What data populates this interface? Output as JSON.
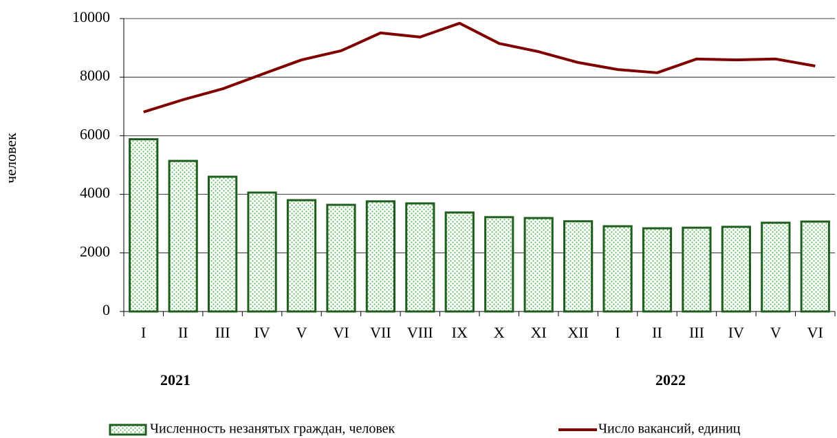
{
  "chart_data": {
    "type": "bar_line",
    "y_axis_label": "человек",
    "categories": [
      "I",
      "II",
      "III",
      "IV",
      "V",
      "VI",
      "VII",
      "VIII",
      "IX",
      "X",
      "XI",
      "XII",
      "I",
      "II",
      "III",
      "IV",
      "V",
      "VI"
    ],
    "year_labels": [
      "2021",
      "2022"
    ],
    "series": [
      {
        "name": "Численность незанятых граждан, человек",
        "type": "bar",
        "color": "#1d5e1d",
        "values": [
          5880,
          5140,
          4600,
          4060,
          3800,
          3640,
          3760,
          3690,
          3380,
          3220,
          3190,
          3080,
          2910,
          2840,
          2860,
          2890,
          3030,
          3070
        ]
      },
      {
        "name": "Число вакансий, единиц",
        "type": "line",
        "color": "#800000",
        "values": [
          6810,
          7230,
          7600,
          8100,
          8590,
          8900,
          9510,
          9370,
          9840,
          9150,
          8870,
          8500,
          8260,
          8150,
          8620,
          8590,
          8620,
          8380
        ]
      }
    ],
    "ylim": [
      0,
      10000
    ],
    "yticks": [
      0,
      2000,
      4000,
      6000,
      8000,
      10000
    ],
    "grid": true
  }
}
